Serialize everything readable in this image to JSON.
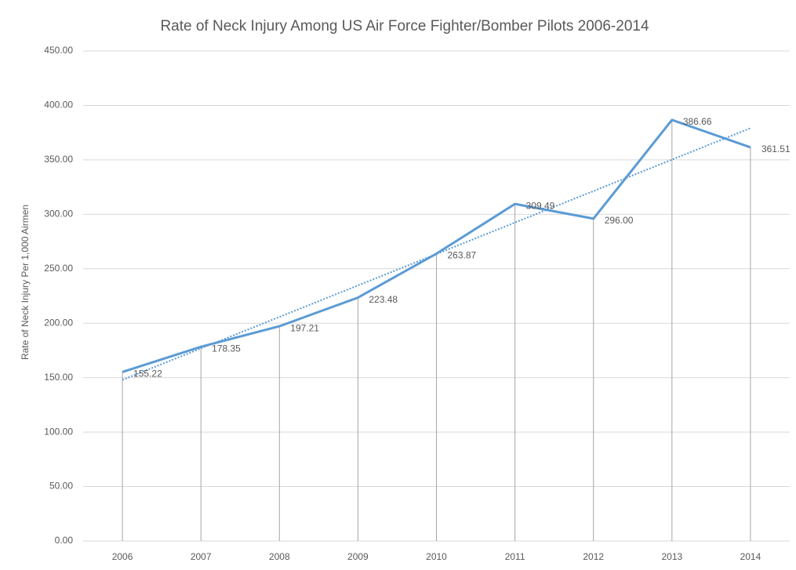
{
  "chart_data": {
    "type": "line",
    "title": "Rate of Neck Injury Among US Air Force Fighter/Bomber Pilots 2006-2014",
    "y_label": "Rate of Neck Injury Per 1,000 Airmen",
    "categories": [
      "2006",
      "2007",
      "2008",
      "2009",
      "2010",
      "2011",
      "2012",
      "2013",
      "2014"
    ],
    "values": [
      155.22,
      178.35,
      197.21,
      223.48,
      263.87,
      309.49,
      296.0,
      386.66,
      361.51
    ],
    "value_labels": [
      "155.22",
      "178.35",
      "197.21",
      "223.48",
      "263.87",
      "309.49",
      "296.00",
      "386.66",
      "361.51"
    ],
    "color": "#5b9bd5",
    "ylim": [
      0,
      450
    ],
    "yticks": [
      {
        "value": 0,
        "label": "0.00"
      },
      {
        "value": 50,
        "label": "50.00"
      },
      {
        "value": 100,
        "label": "100.00"
      },
      {
        "value": 150,
        "label": "150.00"
      },
      {
        "value": 200,
        "label": "200.00"
      },
      {
        "value": 250,
        "label": "250.00"
      },
      {
        "value": 300,
        "label": "300.00"
      },
      {
        "value": 350,
        "label": "350.00"
      },
      {
        "value": 400,
        "label": "400.00"
      },
      {
        "value": 450,
        "label": "450.00"
      }
    ],
    "grid": true,
    "drop_lines": true,
    "trendline": "linear"
  }
}
